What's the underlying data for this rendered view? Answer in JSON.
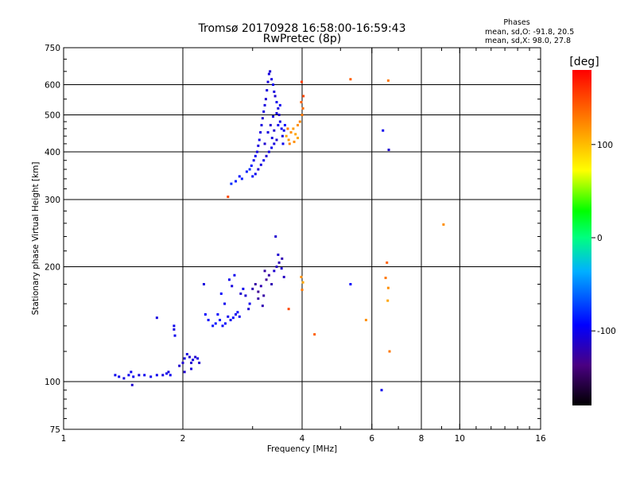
{
  "chart_data": {
    "type": "scatter",
    "title": "Tromsø 20170928 16:58:00-16:59:43",
    "subtitle": "RwPretec (8p)",
    "info": {
      "heading": "Phases",
      "line_o": "mean, sd,O: -91.8, 20.5",
      "line_x": "mean, sd,X:  98.0, 27.8"
    },
    "xlabel": "Frequency [MHz]",
    "ylabel": "Stationary phase Virtual Height [km]",
    "x_scale": "log",
    "y_scale": "log",
    "xlim": [
      1,
      16
    ],
    "ylim": [
      75,
      750
    ],
    "x_ticks": [
      {
        "value": 1,
        "label": "1"
      },
      {
        "value": 2,
        "label": "2"
      },
      {
        "value": 4,
        "label": "4"
      },
      {
        "value": 6,
        "label": "6"
      },
      {
        "value": 8,
        "label": "8"
      },
      {
        "value": 10,
        "label": "10"
      },
      {
        "value": 16,
        "label": "16"
      }
    ],
    "x_gridlines": [
      2,
      4,
      6,
      8,
      10
    ],
    "y_ticks": [
      {
        "value": 75,
        "label": "75"
      },
      {
        "value": 100,
        "label": "100"
      },
      {
        "value": 200,
        "label": "200"
      },
      {
        "value": 300,
        "label": "300"
      },
      {
        "value": 400,
        "label": "400"
      },
      {
        "value": 500,
        "label": "500"
      },
      {
        "value": 600,
        "label": "600"
      },
      {
        "value": 750,
        "label": "750"
      }
    ],
    "y_gridlines": [
      100,
      200,
      300,
      400,
      500,
      600
    ],
    "grid": true,
    "colorbar": {
      "label": "[deg]",
      "range": [
        -180,
        180
      ],
      "ticks": [
        {
          "value": 100,
          "label": "100"
        },
        {
          "value": 0,
          "label": "0"
        },
        {
          "value": -100,
          "label": "-100"
        }
      ]
    },
    "series": [
      {
        "points": [
          [
            1.35,
            104,
            -100
          ],
          [
            1.38,
            103,
            -100
          ],
          [
            1.42,
            102,
            -105
          ],
          [
            1.46,
            104,
            -100
          ],
          [
            1.5,
            103,
            -100
          ],
          [
            1.55,
            104,
            -105
          ],
          [
            1.6,
            104,
            -100
          ],
          [
            1.66,
            103,
            -100
          ],
          [
            1.72,
            104,
            -100
          ],
          [
            1.78,
            104,
            -105
          ],
          [
            1.82,
            105,
            -100
          ],
          [
            1.86,
            104,
            -100
          ],
          [
            1.49,
            98,
            -110
          ],
          [
            1.48,
            106,
            -100
          ],
          [
            1.84,
            106,
            -105
          ],
          [
            1.72,
            147,
            -105
          ],
          [
            1.9,
            140,
            -100
          ],
          [
            1.9,
            137,
            -105
          ],
          [
            1.91,
            132,
            -100
          ],
          [
            1.96,
            110,
            -110
          ],
          [
            2.0,
            112,
            -110
          ],
          [
            2.02,
            115,
            -105
          ],
          [
            2.05,
            118,
            -105
          ],
          [
            2.08,
            116,
            -110
          ],
          [
            2.1,
            112,
            -110
          ],
          [
            2.12,
            114,
            -105
          ],
          [
            2.15,
            116,
            -110
          ],
          [
            2.18,
            115,
            -105
          ],
          [
            2.02,
            106,
            -110
          ],
          [
            2.1,
            108,
            -105
          ],
          [
            2.2,
            112,
            -110
          ],
          [
            2.26,
            180,
            -105
          ],
          [
            2.28,
            150,
            -95
          ],
          [
            2.32,
            145,
            -95
          ],
          [
            2.38,
            140,
            -90
          ],
          [
            2.42,
            142,
            -90
          ],
          [
            2.45,
            150,
            -95
          ],
          [
            2.48,
            145,
            -90
          ],
          [
            2.52,
            140,
            -95
          ],
          [
            2.56,
            142,
            -95
          ],
          [
            2.6,
            148,
            -100
          ],
          [
            2.64,
            145,
            -100
          ],
          [
            2.68,
            147,
            -95
          ],
          [
            2.72,
            150,
            -100
          ],
          [
            2.75,
            152,
            -95
          ],
          [
            2.78,
            148,
            -100
          ],
          [
            2.55,
            160,
            -100
          ],
          [
            2.5,
            170,
            -95
          ],
          [
            2.62,
            185,
            -100
          ],
          [
            2.66,
            178,
            -105
          ],
          [
            2.7,
            190,
            -100
          ],
          [
            2.8,
            170,
            -110
          ],
          [
            2.84,
            175,
            -100
          ],
          [
            2.88,
            168,
            -110
          ],
          [
            2.95,
            160,
            -100
          ],
          [
            2.93,
            155,
            -110
          ],
          [
            3.0,
            175,
            -120
          ],
          [
            3.05,
            180,
            -125
          ],
          [
            3.1,
            172,
            -130
          ],
          [
            3.15,
            178,
            -120
          ],
          [
            3.2,
            168,
            -125
          ],
          [
            3.25,
            185,
            -130
          ],
          [
            3.3,
            190,
            -125
          ],
          [
            3.35,
            180,
            -120
          ],
          [
            3.4,
            195,
            -110
          ],
          [
            3.45,
            200,
            -115
          ],
          [
            3.5,
            205,
            -120
          ],
          [
            3.55,
            198,
            -110
          ],
          [
            3.6,
            188,
            -115
          ],
          [
            3.56,
            210,
            -120
          ],
          [
            3.48,
            215,
            -110
          ],
          [
            3.43,
            240,
            -110
          ],
          [
            3.22,
            195,
            -125
          ],
          [
            3.1,
            165,
            -125
          ],
          [
            3.18,
            158,
            -120
          ],
          [
            3.7,
            155,
            150
          ],
          [
            3.98,
            188,
            120
          ],
          [
            4.02,
            182,
            110
          ],
          [
            4.0,
            174,
            130
          ],
          [
            2.65,
            330,
            -80
          ],
          [
            2.72,
            335,
            -85
          ],
          [
            2.78,
            345,
            -90
          ],
          [
            2.82,
            340,
            -85
          ],
          [
            2.9,
            355,
            -85
          ],
          [
            2.95,
            360,
            -80
          ],
          [
            2.98,
            368,
            -90
          ],
          [
            3.02,
            380,
            -100
          ],
          [
            3.05,
            390,
            -100
          ],
          [
            3.08,
            400,
            -105
          ],
          [
            3.1,
            415,
            -105
          ],
          [
            3.12,
            430,
            -100
          ],
          [
            3.14,
            450,
            -105
          ],
          [
            3.16,
            470,
            -105
          ],
          [
            3.18,
            490,
            -110
          ],
          [
            3.2,
            510,
            -105
          ],
          [
            3.22,
            530,
            -105
          ],
          [
            3.24,
            550,
            -110
          ],
          [
            3.26,
            580,
            -105
          ],
          [
            3.28,
            610,
            -105
          ],
          [
            3.3,
            640,
            -105
          ],
          [
            3.32,
            650,
            -110
          ],
          [
            3.35,
            620,
            -105
          ],
          [
            3.38,
            600,
            -100
          ],
          [
            3.4,
            575,
            -105
          ],
          [
            3.42,
            560,
            -110
          ],
          [
            3.45,
            540,
            -100
          ],
          [
            3.48,
            520,
            -105
          ],
          [
            3.5,
            500,
            -110
          ],
          [
            3.52,
            480,
            -105
          ],
          [
            3.55,
            460,
            -100
          ],
          [
            3.57,
            440,
            -105
          ],
          [
            3.45,
            430,
            -110
          ],
          [
            3.4,
            420,
            -105
          ],
          [
            3.35,
            410,
            -100
          ],
          [
            3.3,
            400,
            -105
          ],
          [
            3.25,
            390,
            -110
          ],
          [
            3.2,
            380,
            -100
          ],
          [
            3.15,
            370,
            -105
          ],
          [
            3.1,
            360,
            -110
          ],
          [
            3.05,
            350,
            -100
          ],
          [
            3.0,
            345,
            -90
          ],
          [
            3.22,
            420,
            -110
          ],
          [
            3.28,
            450,
            -105
          ],
          [
            3.33,
            470,
            -110
          ],
          [
            3.38,
            495,
            -105
          ],
          [
            3.45,
            505,
            -105
          ],
          [
            3.4,
            455,
            -110
          ],
          [
            3.36,
            435,
            -105
          ],
          [
            3.48,
            470,
            -100
          ],
          [
            3.52,
            530,
            -100
          ],
          [
            3.6,
            455,
            -100
          ],
          [
            3.62,
            470,
            -95
          ],
          [
            3.58,
            420,
            -100
          ],
          [
            3.65,
            440,
            110
          ],
          [
            3.7,
            430,
            115
          ],
          [
            3.75,
            450,
            120
          ],
          [
            3.8,
            460,
            115
          ],
          [
            3.85,
            445,
            110
          ],
          [
            3.9,
            470,
            120
          ],
          [
            3.95,
            480,
            125
          ],
          [
            4.0,
            500,
            130
          ],
          [
            4.02,
            520,
            135
          ],
          [
            3.98,
            540,
            140
          ],
          [
            4.03,
            560,
            150
          ],
          [
            3.99,
            610,
            155
          ],
          [
            3.72,
            420,
            125
          ],
          [
            3.82,
            425,
            120
          ],
          [
            3.9,
            435,
            110
          ],
          [
            3.68,
            460,
            130
          ],
          [
            2.6,
            305,
            150
          ],
          [
            5.3,
            620,
            140
          ],
          [
            6.6,
            615,
            130
          ],
          [
            6.4,
            455,
            -100
          ],
          [
            6.62,
            405,
            -110
          ],
          [
            9.1,
            258,
            120
          ],
          [
            6.55,
            205,
            140
          ],
          [
            6.5,
            187,
            130
          ],
          [
            6.6,
            176,
            120
          ],
          [
            6.58,
            163,
            110
          ],
          [
            6.65,
            120,
            130
          ],
          [
            5.8,
            145,
            120
          ],
          [
            4.3,
            133,
            140
          ],
          [
            5.3,
            180,
            -95
          ],
          [
            6.35,
            95,
            -100
          ]
        ]
      }
    ]
  }
}
